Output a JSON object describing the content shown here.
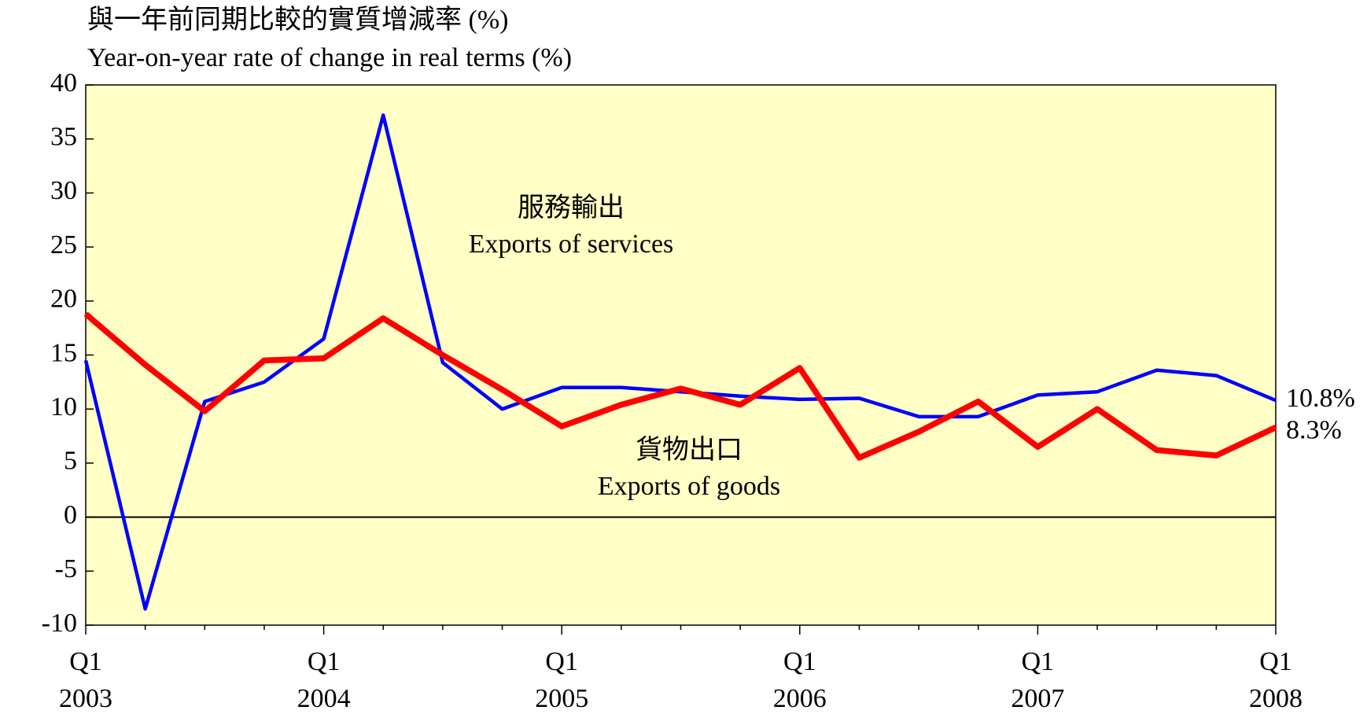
{
  "chart_data": {
    "type": "line",
    "title": [
      "與一年前同期比較的實質增減率 (%)",
      "Year-on-year rate of change in real terms (%)"
    ],
    "categories": [
      [
        "Q1",
        "2003"
      ],
      null,
      null,
      null,
      [
        "Q1",
        "2004"
      ],
      null,
      null,
      null,
      [
        "Q1",
        "2005"
      ],
      null,
      null,
      null,
      [
        "Q1",
        "2006"
      ],
      null,
      null,
      null,
      [
        "Q1",
        "2007"
      ],
      null,
      null,
      null,
      [
        "Q1",
        "2008"
      ]
    ],
    "series": [
      {
        "name": [
          "服務輸出",
          "Exports of services"
        ],
        "color": "#0000ff",
        "values": [
          14.5,
          -8.5,
          10.7,
          12.5,
          16.5,
          37.2,
          14.3,
          10.0,
          12.0,
          12.0,
          11.6,
          11.2,
          10.9,
          11.0,
          9.3,
          9.3,
          11.3,
          11.6,
          13.6,
          13.1,
          10.8
        ],
        "value_labels": [
          null,
          null,
          null,
          null,
          null,
          null,
          null,
          null,
          null,
          null,
          null,
          null,
          null,
          null,
          null,
          null,
          null,
          null,
          null,
          null,
          "10.8%"
        ]
      },
      {
        "name": [
          "貨物出口",
          "Exports of goods"
        ],
        "color": "#ff0000",
        "values": [
          18.8,
          14.1,
          9.8,
          14.5,
          14.7,
          18.4,
          15.0,
          11.8,
          8.4,
          10.4,
          11.9,
          10.4,
          13.8,
          5.5,
          7.9,
          10.7,
          6.5,
          10.0,
          6.2,
          5.7,
          8.3
        ],
        "value_labels": [
          null,
          null,
          null,
          null,
          null,
          null,
          null,
          null,
          null,
          null,
          null,
          null,
          null,
          null,
          null,
          null,
          null,
          null,
          null,
          null,
          "8.3%"
        ]
      }
    ],
    "ylim": [
      -10,
      40
    ],
    "yticks": [
      -10,
      -5,
      0,
      5,
      10,
      15,
      20,
      25,
      30,
      35,
      40
    ],
    "background": "#ffffc6"
  }
}
